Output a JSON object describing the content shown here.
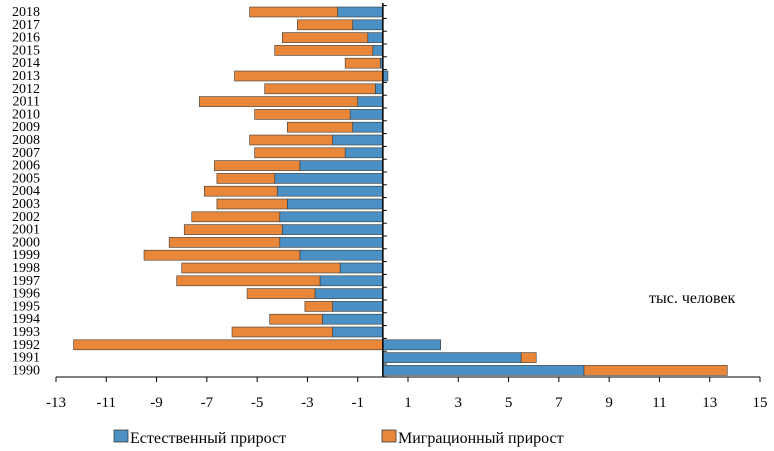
{
  "chart_data": {
    "type": "bar",
    "orientation": "horizontal",
    "stacking": "diverging",
    "categories": [
      "1990",
      "1991",
      "1992",
      "1993",
      "1994",
      "1995",
      "1996",
      "1997",
      "1998",
      "1999",
      "2000",
      "2001",
      "2002",
      "2003",
      "2004",
      "2005",
      "2006",
      "2007",
      "2008",
      "2009",
      "2010",
      "2011",
      "2012",
      "2013",
      "2014",
      "2015",
      "2016",
      "2017",
      "2018"
    ],
    "series": [
      {
        "name": "Естественный прирост",
        "color": "#4a90c4",
        "values": [
          8.0,
          5.5,
          2.3,
          -2.0,
          -2.4,
          -2.0,
          -2.7,
          -2.5,
          -1.7,
          -3.3,
          -4.1,
          -4.0,
          -4.1,
          -3.8,
          -4.2,
          -4.3,
          -3.3,
          -1.5,
          -2.0,
          -1.2,
          -1.3,
          -1.0,
          -0.3,
          0.2,
          -0.1,
          -0.4,
          -0.6,
          -1.2,
          -1.8
        ]
      },
      {
        "name": "Миграционный прирост",
        "color": "#e8873a",
        "values": [
          5.7,
          0.6,
          -12.3,
          -4.0,
          -2.1,
          -1.1,
          -2.7,
          -5.7,
          -6.3,
          -6.2,
          -4.4,
          -3.9,
          -3.5,
          -2.8,
          -2.9,
          -2.3,
          -3.4,
          -3.6,
          -3.3,
          -2.6,
          -3.8,
          -6.3,
          -4.4,
          -5.9,
          -1.4,
          -3.9,
          -3.4,
          -2.2,
          -3.5
        ]
      }
    ],
    "xlim": [
      -13,
      15
    ],
    "xticks": [
      "-13",
      "-11",
      "-9",
      "-7",
      "-5",
      "-3",
      "-1",
      "1",
      "3",
      "5",
      "7",
      "9",
      "11",
      "13",
      "15"
    ],
    "unit_label": "тыс. человек",
    "legend_position": "bottom",
    "grid": false
  }
}
